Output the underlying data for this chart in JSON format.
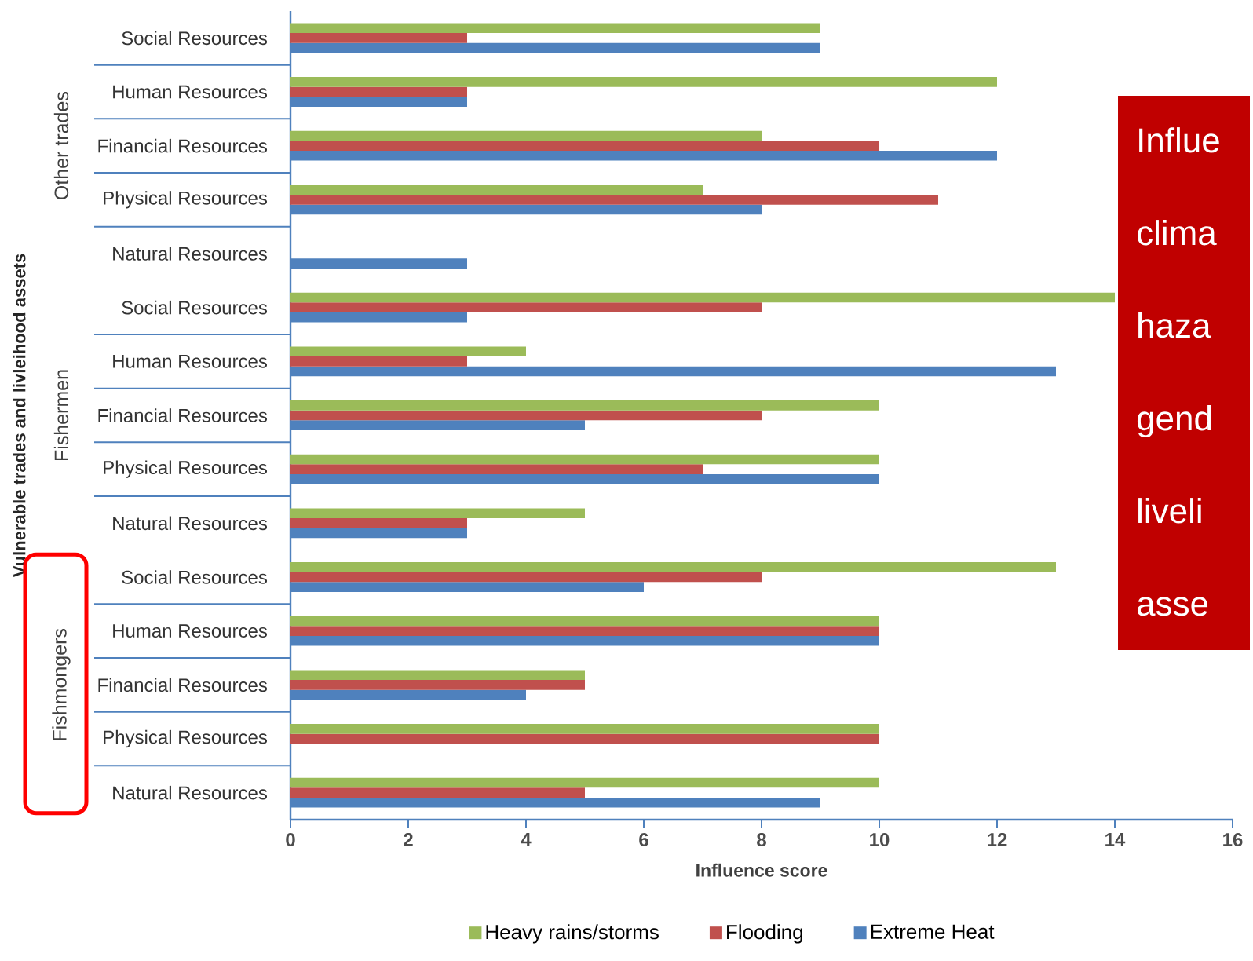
{
  "chart_data": {
    "type": "bar",
    "orientation": "horizontal",
    "xlabel": "Influence score",
    "ylabel": "Vulnerable trades and livleihood assets",
    "categories": [
      "Social Resources",
      "Human Resources",
      "Financial Resources",
      "Physical Resources",
      "Natural Resources",
      "Social Resources",
      "Human Resources",
      "Financial Resources",
      "Physical Resources",
      "Natural Resources",
      "Social Resources",
      "Human Resources",
      "Financial Resources",
      "Physical Resources",
      "Natural Resources"
    ],
    "series": [
      {
        "name": "Heavy rains/storms",
        "color": "#9bbb59",
        "values": [
          9,
          12,
          8,
          7,
          null,
          14,
          4,
          10,
          10,
          5,
          13,
          10,
          5,
          10,
          10
        ]
      },
      {
        "name": "Flooding",
        "color": "#c0504d",
        "values": [
          3,
          3,
          10,
          11,
          null,
          8,
          3,
          8,
          7,
          3,
          8,
          10,
          5,
          10,
          5
        ]
      },
      {
        "name": "Extreme Heat",
        "color": "#4f81bd",
        "values": [
          9,
          3,
          12,
          8,
          3,
          3,
          13,
          5,
          10,
          3,
          6,
          10,
          4,
          null,
          9
        ]
      }
    ],
    "xlim": [
      0,
      16
    ],
    "xticks": [
      0,
      2,
      4,
      6,
      8,
      10,
      12,
      14,
      16
    ],
    "legend": "bottom",
    "grid": false,
    "annotations": [
      "Other trades",
      "Fishermen",
      "Fishmongers",
      "Influe",
      "clima",
      "haza",
      "gend",
      "liveli",
      "asse"
    ]
  }
}
